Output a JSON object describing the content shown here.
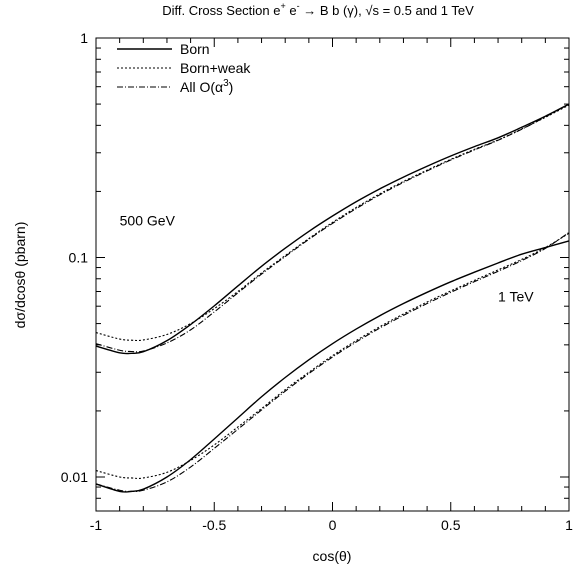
{
  "chart_data": {
    "type": "line",
    "title": {
      "prefix": "Diff. Cross Section e",
      "sup1": "+",
      "mid1": " e",
      "sup2": "-",
      "suffix": " → B b (γ), √s = 0.5 and 1 TeV"
    },
    "xlabel": "cos(θ)",
    "ylabel": "dσ/dcosθ (pbarn)",
    "xlim": [
      -1,
      1
    ],
    "ylim": [
      0.007,
      1
    ],
    "yscale": "log",
    "grid": false,
    "xticks": [
      -1,
      -0.5,
      0,
      0.5,
      1
    ],
    "xtick_labels": [
      "-1",
      "-0.5",
      "0",
      "0.5",
      "1"
    ],
    "yticks": [
      0.01,
      0.1,
      1
    ],
    "ytick_labels": [
      "0.01",
      "0.1",
      "1"
    ],
    "legend_position": "top-left",
    "legend": [
      {
        "key": "born",
        "label": "Born",
        "dash": "solid"
      },
      {
        "key": "weak",
        "label": "Born+weak",
        "dash": "dotted"
      },
      {
        "key": "all",
        "label": "All O(α",
        "sup": "3",
        "label_end": ")",
        "dash": "dashdot"
      }
    ],
    "annotations": [
      {
        "text": "500 GeV",
        "x": -0.9,
        "y": 0.14
      },
      {
        "text": "1 TeV",
        "x": 0.7,
        "y": 0.063
      }
    ],
    "x": [
      -1.0,
      -0.9,
      -0.85,
      -0.8,
      -0.7,
      -0.6,
      -0.5,
      -0.4,
      -0.3,
      -0.2,
      -0.1,
      0.0,
      0.1,
      0.2,
      0.3,
      0.4,
      0.5,
      0.6,
      0.7,
      0.8,
      0.9,
      1.0
    ],
    "series": [
      {
        "name": "Born",
        "group": "500 GeV",
        "dash": "solid",
        "values": [
          0.0395,
          0.0368,
          0.0366,
          0.0372,
          0.0418,
          0.0495,
          0.0602,
          0.0742,
          0.0912,
          0.1102,
          0.1315,
          0.1545,
          0.1795,
          0.2055,
          0.2325,
          0.2605,
          0.29,
          0.32,
          0.351,
          0.392,
          0.44,
          0.5
        ]
      },
      {
        "name": "Born+weak",
        "group": "500 GeV",
        "dash": "dotted",
        "values": [
          0.0455,
          0.0425,
          0.042,
          0.0421,
          0.0446,
          0.05,
          0.0585,
          0.07,
          0.085,
          0.102,
          0.122,
          0.1445,
          0.169,
          0.195,
          0.222,
          0.25,
          0.28,
          0.311,
          0.343,
          0.385,
          0.435,
          0.495
        ]
      },
      {
        "name": "All O(α3)",
        "group": "500 GeV",
        "dash": "dashdot",
        "values": [
          0.0405,
          0.0378,
          0.0373,
          0.0375,
          0.0408,
          0.0468,
          0.0565,
          0.069,
          0.084,
          0.101,
          0.121,
          0.143,
          0.167,
          0.193,
          0.22,
          0.248,
          0.278,
          0.309,
          0.342,
          0.384,
          0.437,
          0.5
        ]
      },
      {
        "name": "Born",
        "group": "1 TeV",
        "dash": "solid",
        "values": [
          0.0093,
          0.0086,
          0.0086,
          0.0088,
          0.01,
          0.012,
          0.0149,
          0.0186,
          0.0232,
          0.0284,
          0.0342,
          0.0405,
          0.0472,
          0.0543,
          0.0617,
          0.0694,
          0.0775,
          0.0857,
          0.0944,
          0.1035,
          0.111,
          0.119
        ]
      },
      {
        "name": "Born+weak",
        "group": "1 TeV",
        "dash": "dotted",
        "values": [
          0.0107,
          0.01,
          0.0099,
          0.0099,
          0.0105,
          0.0119,
          0.014,
          0.0169,
          0.0205,
          0.025,
          0.03,
          0.0357,
          0.0418,
          0.0484,
          0.0553,
          0.0627,
          0.0704,
          0.0787,
          0.0878,
          0.098,
          0.111,
          0.129
        ]
      },
      {
        "name": "All O(α3)",
        "group": "1 TeV",
        "dash": "dashdot",
        "values": [
          0.0093,
          0.0087,
          0.0086,
          0.0087,
          0.0095,
          0.0111,
          0.0135,
          0.0165,
          0.0202,
          0.0246,
          0.0296,
          0.0352,
          0.0412,
          0.0477,
          0.0545,
          0.0617,
          0.0694,
          0.0776,
          0.0865,
          0.0968,
          0.11,
          0.13
        ]
      }
    ]
  }
}
